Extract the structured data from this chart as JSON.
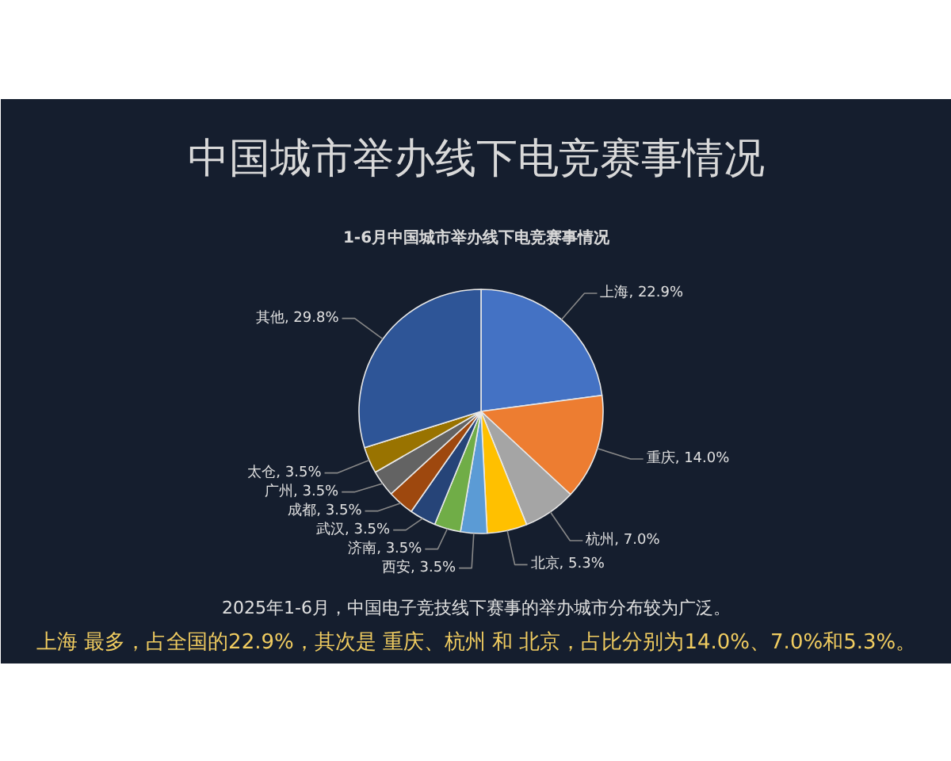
{
  "chart_data": {
    "type": "pie",
    "title": "中国城市举办线下电竞赛事情况",
    "subtitle": "1-6月中国城市举办线下电竞赛事情况",
    "categories": [
      "上海",
      "重庆",
      "杭州",
      "北京",
      "西安",
      "济南",
      "武汉",
      "成都",
      "广州",
      "太仓",
      "其他"
    ],
    "values": [
      22.9,
      14.0,
      7.0,
      5.3,
      3.5,
      3.5,
      3.5,
      3.5,
      3.5,
      3.5,
      29.8
    ],
    "value_labels": [
      "22.9%",
      "14.0%",
      "7.0%",
      "5.3%",
      "3.5%",
      "3.5%",
      "3.5%",
      "3.5%",
      "3.5%",
      "3.5%",
      "29.8%"
    ],
    "colors": [
      "#4472c4",
      "#ed7d31",
      "#a5a5a5",
      "#ffc000",
      "#5b9bd5",
      "#70ad47",
      "#264478",
      "#9e480e",
      "#636363",
      "#997300",
      "#2e5597"
    ],
    "annotations": [
      "2025年1-6月，中国电子竞技线下赛事的举办城市分布较为广泛。",
      "上海 最多，占全国的22.9%，其次是 重庆、杭州 和 北京，占比分别为14.0%、7.0%和5.3%。"
    ]
  }
}
